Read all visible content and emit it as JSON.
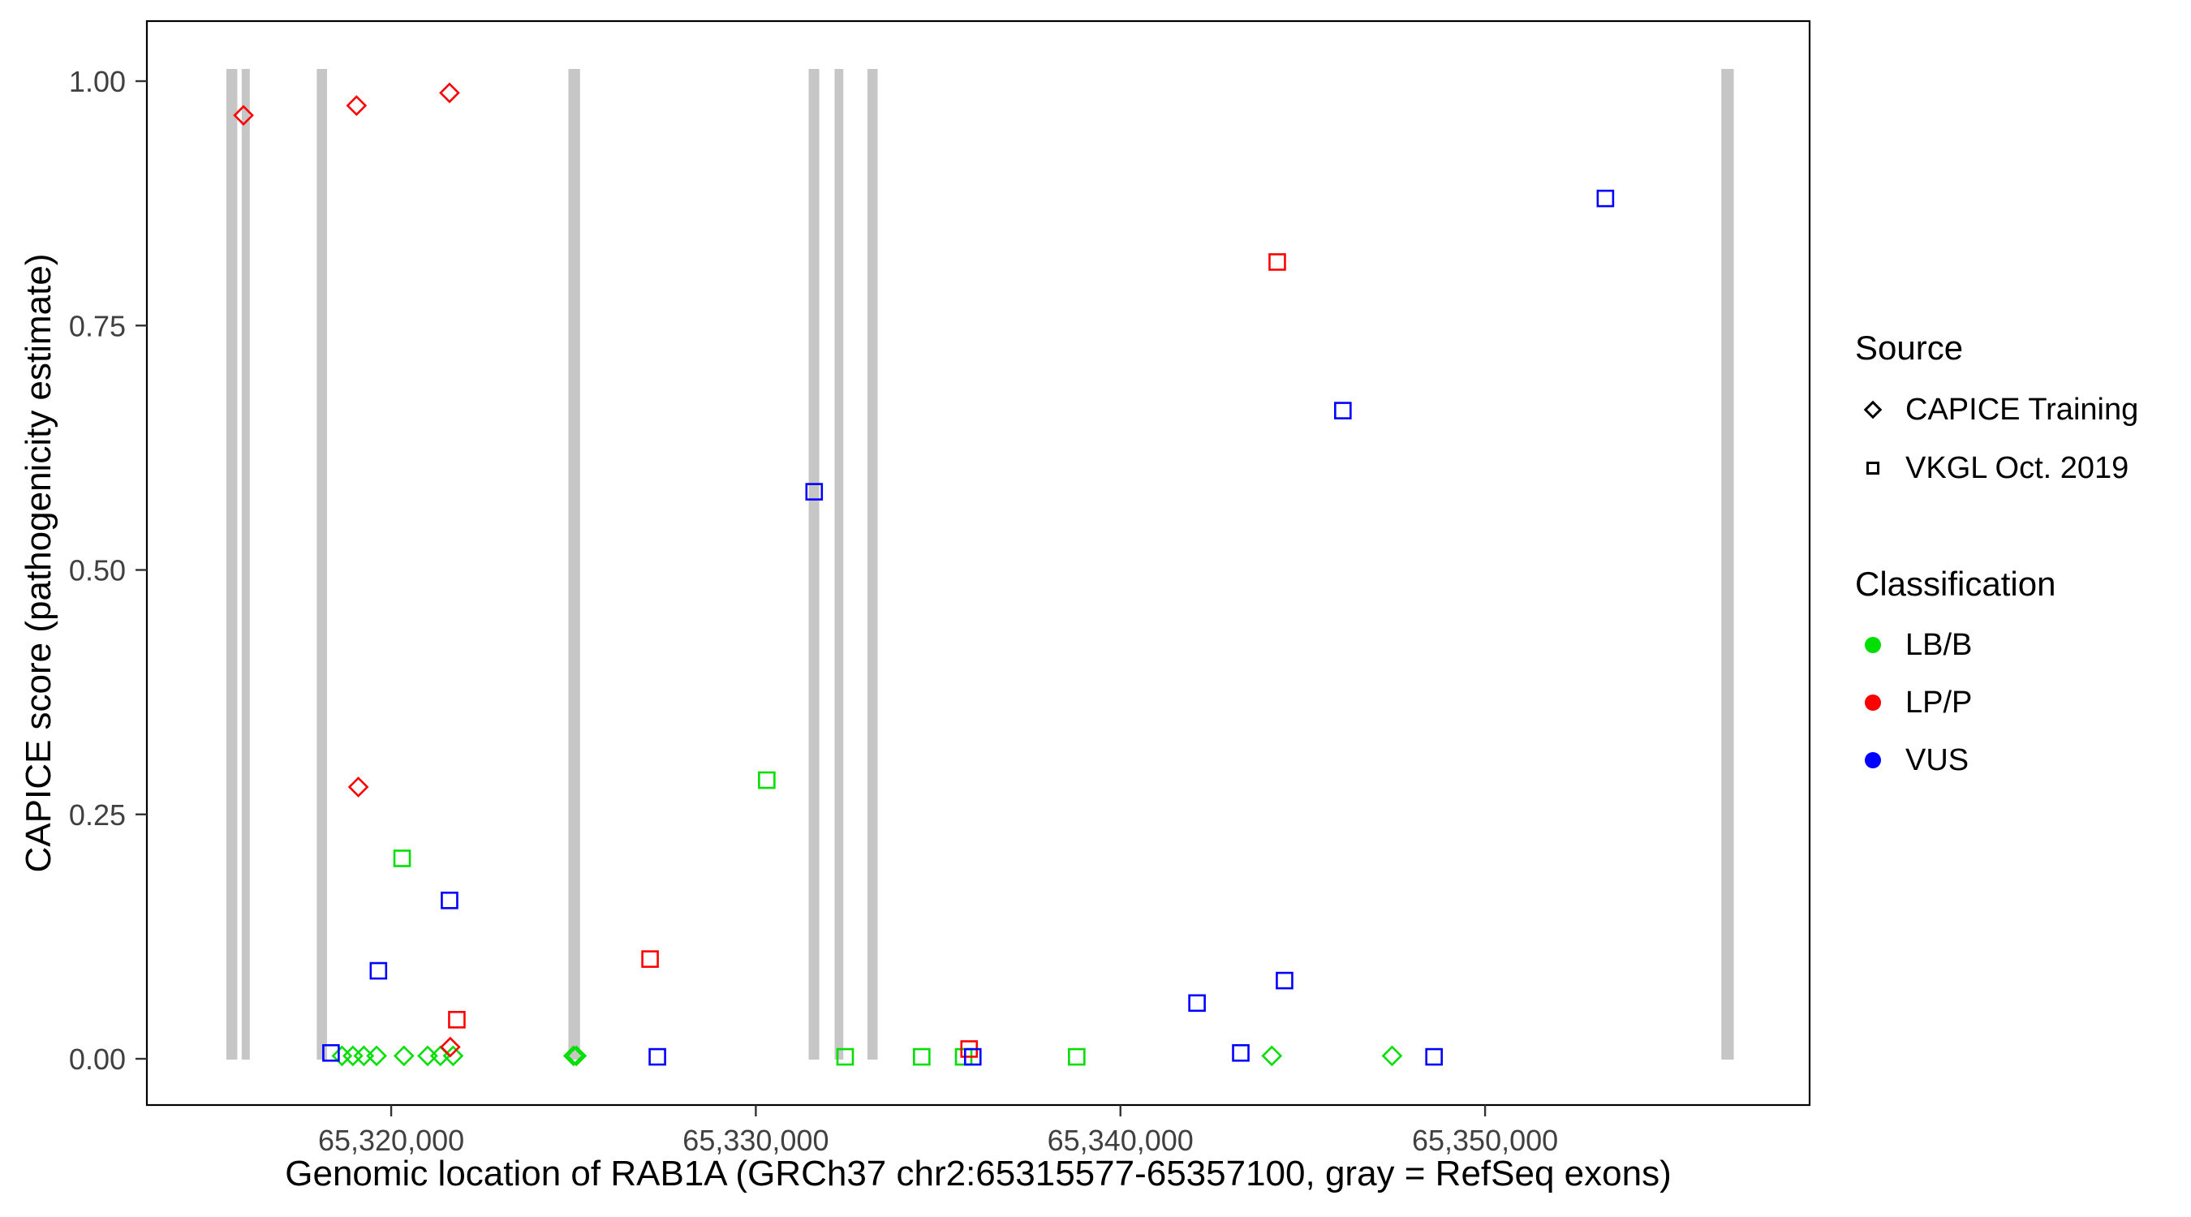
{
  "figure_title": "",
  "legend": {
    "source": {
      "title": "Source",
      "items": [
        {
          "label": "CAPICE Training",
          "shape": "diamond"
        },
        {
          "label": "VKGL Oct. 2019",
          "shape": "square"
        }
      ]
    },
    "classification": {
      "title": "Classification",
      "items": [
        {
          "label": "LB/B",
          "color": "#00DF00"
        },
        {
          "label": "LP/P",
          "color": "#FF0000"
        },
        {
          "label": "VUS",
          "color": "#0000FF"
        }
      ]
    }
  },
  "chart_data": {
    "type": "scatter",
    "title": "",
    "xlabel": "Genomic location of RAB1A (GRCh37 chr2:65315577-65357100, gray = RefSeq exons)",
    "ylabel": "CAPICE score (pathogenicity estimate)",
    "xlim": [
      65313300,
      65358900
    ],
    "ylim": [
      0,
      1
    ],
    "x_ticks": [
      65320000,
      65330000,
      65340000,
      65350000
    ],
    "x_tick_labels": [
      "65,320,000",
      "65,330,000",
      "65,340,000",
      "65,350,000"
    ],
    "y_ticks": [
      0,
      0.25,
      0.5,
      0.75,
      1
    ],
    "y_tick_labels": [
      "0.00",
      "0.25",
      "0.50",
      "0.75",
      "1.00"
    ],
    "grid": "off",
    "legend_position": "right",
    "exon_color": "#C6C6C6",
    "colors": {
      "LB/B": "#00DF00",
      "LP/P": "#FF0000",
      "VUS": "#0000FF"
    },
    "exons": [
      [
        65315480,
        65315780
      ],
      [
        65315900,
        65316120
      ],
      [
        65317960,
        65318240
      ],
      [
        65324860,
        65325180
      ],
      [
        65331450,
        65331740
      ],
      [
        65332160,
        65332400
      ],
      [
        65333060,
        65333340
      ],
      [
        65356480,
        65356820
      ]
    ],
    "series": [
      {
        "name": "CAPICE Training — LB/B",
        "source": "CAPICE Training",
        "classification": "LB/B",
        "shape": "diamond",
        "points": [
          [
            65318650,
            0.003
          ],
          [
            65318950,
            0.003
          ],
          [
            65319250,
            0.003
          ],
          [
            65319600,
            0.003
          ],
          [
            65320350,
            0.003
          ],
          [
            65321000,
            0.003
          ],
          [
            65321350,
            0.003
          ],
          [
            65321700,
            0.003
          ],
          [
            65325000,
            0.003
          ],
          [
            65325080,
            0.003
          ],
          [
            65344150,
            0.003
          ],
          [
            65347450,
            0.003
          ]
        ]
      },
      {
        "name": "CAPICE Training — LP/P",
        "source": "CAPICE Training",
        "classification": "LP/P",
        "shape": "diamond",
        "points": [
          [
            65315950,
            0.965
          ],
          [
            65319050,
            0.975
          ],
          [
            65321600,
            0.988
          ],
          [
            65319100,
            0.278
          ],
          [
            65321620,
            0.012
          ]
        ]
      },
      {
        "name": "VKGL Oct. 2019 — LB/B",
        "source": "VKGL Oct. 2019",
        "classification": "LB/B",
        "shape": "square",
        "points": [
          [
            65320300,
            0.205
          ],
          [
            65330300,
            0.285
          ],
          [
            65332450,
            0.002
          ],
          [
            65334550,
            0.002
          ],
          [
            65335700,
            0.002
          ],
          [
            65338800,
            0.002
          ]
        ]
      },
      {
        "name": "VKGL Oct. 2019 — LP/P",
        "source": "VKGL Oct. 2019",
        "classification": "LP/P",
        "shape": "square",
        "points": [
          [
            65344300,
            0.815
          ],
          [
            65327100,
            0.102
          ],
          [
            65321800,
            0.04
          ],
          [
            65335850,
            0.01
          ]
        ]
      },
      {
        "name": "VKGL Oct. 2019 — VUS",
        "source": "VKGL Oct. 2019",
        "classification": "VUS",
        "shape": "square",
        "points": [
          [
            65353300,
            0.88
          ],
          [
            65346100,
            0.663
          ],
          [
            65331600,
            0.58
          ],
          [
            65321600,
            0.162
          ],
          [
            65319650,
            0.09
          ],
          [
            65342100,
            0.057
          ],
          [
            65344500,
            0.08
          ],
          [
            65318350,
            0.006
          ],
          [
            65327300,
            0.002
          ],
          [
            65343300,
            0.006
          ],
          [
            65348600,
            0.002
          ],
          [
            65335950,
            0.002
          ]
        ]
      }
    ]
  }
}
